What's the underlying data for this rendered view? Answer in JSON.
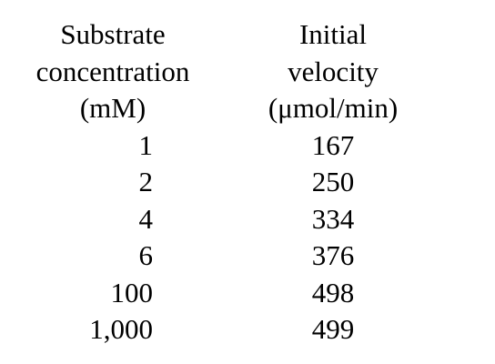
{
  "table": {
    "columns": [
      {
        "header_lines": [
          "Substrate",
          "concentration",
          "(mM)"
        ],
        "values": [
          "1",
          "2",
          "4",
          "6",
          "100",
          "1,000"
        ]
      },
      {
        "header_lines": [
          "Initial",
          "velocity",
          "(μmol/min)"
        ],
        "values": [
          "167",
          "250",
          "334",
          "376",
          "498",
          "499"
        ]
      }
    ]
  }
}
